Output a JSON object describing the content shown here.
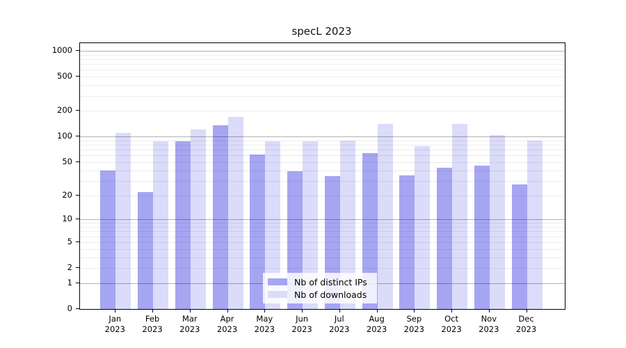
{
  "chart_data": {
    "type": "bar",
    "title": "specL 2023",
    "categories": [
      "Jan 2023",
      "Feb 2023",
      "Mar 2023",
      "Apr 2023",
      "May 2023",
      "Jun 2023",
      "Jul 2023",
      "Aug 2023",
      "Sep 2023",
      "Oct 2023",
      "Nov 2023",
      "Dec 2023"
    ],
    "series": [
      {
        "name": "Nb of distinct IPs",
        "key": "distinct-ips",
        "color": "#a5a5f2",
        "values": [
          40,
          22,
          88,
          135,
          62,
          39,
          34,
          64,
          35,
          43,
          45,
          27
        ]
      },
      {
        "name": "Nb of downloads",
        "key": "downloads",
        "color": "#dbdbfa",
        "values": [
          110,
          88,
          120,
          170,
          88,
          88,
          90,
          140,
          77,
          140,
          105,
          89
        ]
      }
    ],
    "y_scale": "log10(value+1)",
    "y_ticks": [
      1000,
      500,
      200,
      100,
      50,
      20,
      10,
      5,
      2,
      1,
      0
    ],
    "y_major_gridlines": [
      1,
      10,
      100,
      1000
    ],
    "y_minor_gridlines": [
      2,
      3,
      4,
      5,
      6,
      7,
      8,
      9,
      20,
      30,
      40,
      50,
      60,
      70,
      80,
      90,
      200,
      300,
      400,
      500,
      600,
      700,
      800,
      900
    ],
    "ylim": [
      0,
      1150
    ],
    "grid": "on",
    "legend_position": "inside-bottom-center"
  }
}
